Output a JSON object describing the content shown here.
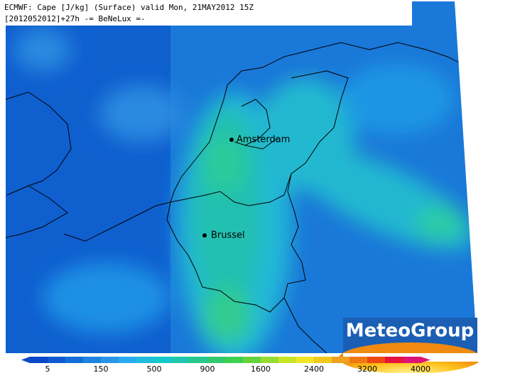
{
  "header": {
    "line1": "ECMWF: Cape [J/kg] (Surface) valid Mon, 21MAY2012 15Z",
    "line2": "[2012052012]+27h -= BeNeLux =-"
  },
  "cities": [
    {
      "label": "Amsterdam"
    },
    {
      "label": "Brussel"
    }
  ],
  "colorbar": {
    "ticks": [
      "5",
      "150",
      "500",
      "900",
      "1600",
      "2400",
      "3200",
      "4000"
    ],
    "colors": [
      "#0a46c8",
      "#0f5ad2",
      "#146ed8",
      "#1e82e0",
      "#2896e6",
      "#28aaf0",
      "#1ebedc",
      "#14c8c8",
      "#1ec8aa",
      "#28c88c",
      "#32c86e",
      "#3cd250",
      "#64d23c",
      "#96dc32",
      "#c8e628",
      "#f0e628",
      "#f0c81e",
      "#f0a01e",
      "#f07814",
      "#f04614",
      "#e6143c",
      "#dc1478"
    ]
  },
  "logo": {
    "text": "MeteoGroup"
  }
}
